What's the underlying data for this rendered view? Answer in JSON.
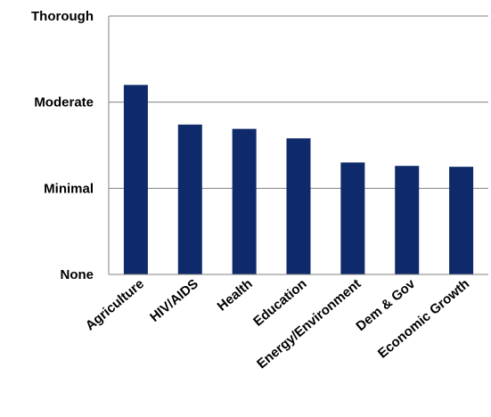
{
  "chart_data": {
    "type": "bar",
    "title": "",
    "xlabel": "",
    "ylabel": "",
    "categories": [
      "Agriculture",
      "HIV/AIDS",
      "Health",
      "Education",
      "Energy/Environment",
      "Dem & Gov",
      "Economic Growth"
    ],
    "values": [
      2.2,
      1.74,
      1.69,
      1.58,
      1.3,
      1.26,
      1.25
    ],
    "y_tick_values": [
      0,
      1,
      2,
      3
    ],
    "y_tick_labels": [
      "None",
      "Minimal",
      "Moderate",
      "Thorough"
    ],
    "ylim": [
      0,
      3
    ],
    "grid": true,
    "legend": "none",
    "bar_color": "#0f2a6b"
  }
}
